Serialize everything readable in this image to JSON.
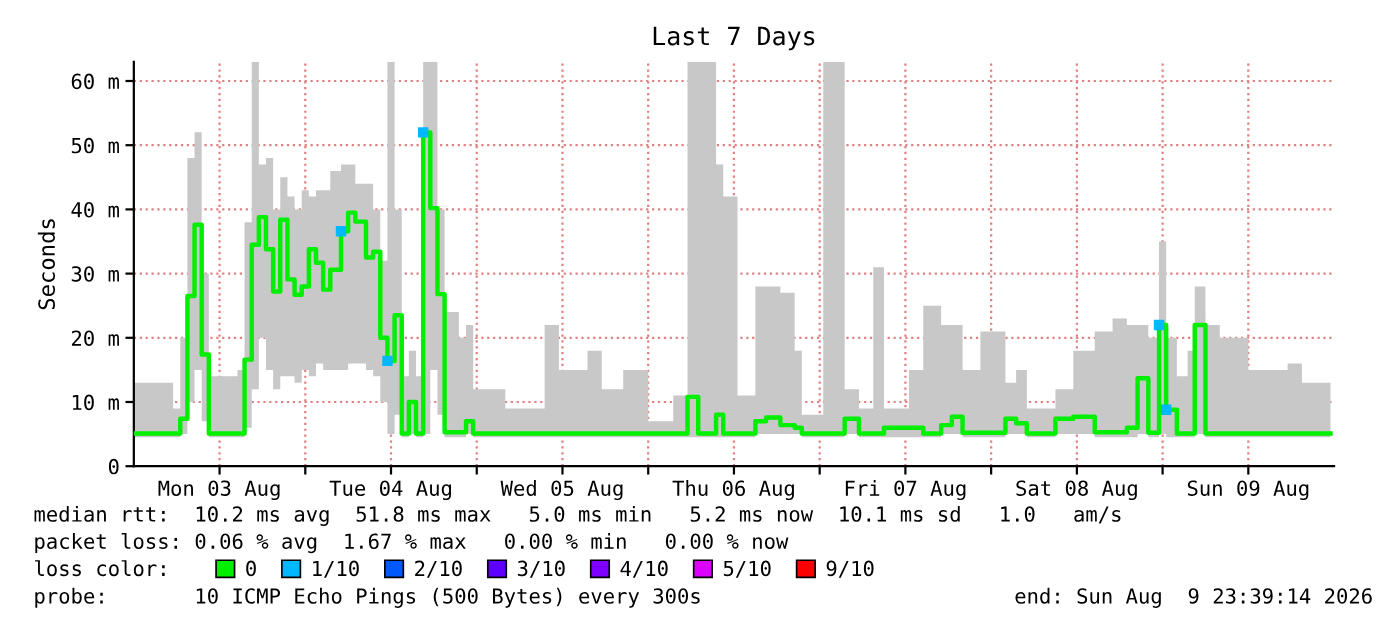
{
  "chart_data": {
    "type": "step",
    "title": "Last 7 Days",
    "ylabel": "Seconds",
    "legend_title": "loss color:",
    "x": [
      "2026-08-03T00:00",
      "2026-08-03T05:30",
      "2026-08-03T06:30",
      "2026-08-03T07:30",
      "2026-08-03T08:30",
      "2026-08-03T09:30",
      "2026-08-03T10:30",
      "2026-08-03T14:30",
      "2026-08-03T15:30",
      "2026-08-03T16:30",
      "2026-08-03T17:30",
      "2026-08-03T18:30",
      "2026-08-03T19:30",
      "2026-08-03T20:30",
      "2026-08-03T21:30",
      "2026-08-03T22:30",
      "2026-08-03T23:30",
      "2026-08-04T00:30",
      "2026-08-04T01:30",
      "2026-08-04T02:30",
      "2026-08-04T03:30",
      "2026-08-04T05:00",
      "2026-08-04T06:00",
      "2026-08-04T07:00",
      "2026-08-04T08:30",
      "2026-08-04T09:30",
      "2026-08-04T10:30",
      "2026-08-04T11:30",
      "2026-08-04T12:30",
      "2026-08-04T13:30",
      "2026-08-04T14:30",
      "2026-08-04T15:30",
      "2026-08-04T16:30",
      "2026-08-04T17:30",
      "2026-08-04T18:30",
      "2026-08-04T19:30",
      "2026-08-04T21:30",
      "2026-08-04T22:30",
      "2026-08-04T23:30",
      "2026-08-05T04:00",
      "2026-08-05T09:30",
      "2026-08-05T11:30",
      "2026-08-05T15:30",
      "2026-08-05T17:30",
      "2026-08-05T20:30",
      "2026-08-06T00:00",
      "2026-08-06T03:30",
      "2026-08-06T05:30",
      "2026-08-06T07:00",
      "2026-08-06T09:30",
      "2026-08-06T10:30",
      "2026-08-06T12:30",
      "2026-08-06T15:00",
      "2026-08-06T16:30",
      "2026-08-06T18:30",
      "2026-08-06T20:30",
      "2026-08-06T21:30",
      "2026-08-07T00:30",
      "2026-08-07T03:30",
      "2026-08-07T05:30",
      "2026-08-07T07:30",
      "2026-08-07T09:00",
      "2026-08-07T12:30",
      "2026-08-07T14:30",
      "2026-08-07T17:00",
      "2026-08-07T18:30",
      "2026-08-07T20:00",
      "2026-08-07T22:30",
      "2026-08-08T02:00",
      "2026-08-08T03:30",
      "2026-08-08T05:00",
      "2026-08-08T09:00",
      "2026-08-08T11:30",
      "2026-08-08T14:30",
      "2026-08-08T17:00",
      "2026-08-08T19:00",
      "2026-08-08T20:30",
      "2026-08-08T22:00",
      "2026-08-08T23:30",
      "2026-08-09T00:30",
      "2026-08-09T02:00",
      "2026-08-09T03:30",
      "2026-08-09T04:30",
      "2026-08-09T06:00",
      "2026-08-09T08:00",
      "2026-08-09T12:00",
      "2026-08-09T17:30",
      "2026-08-09T19:30",
      "2026-08-09T23:30"
    ],
    "series": [
      {
        "name": "0",
        "color": "#00ee00",
        "values": [
          5.1,
          5.1,
          7.4,
          26.5,
          37.6,
          17.4,
          5.1,
          5.1,
          16.6,
          34.5,
          38.8,
          33.8,
          27.2,
          38.4,
          29.1,
          26.7,
          28,
          33.8,
          31.7,
          27.5,
          30.6,
          36.6,
          39.5,
          38.1,
          32.5,
          33.4,
          20,
          16.4,
          23.5,
          5.1,
          10,
          5.1,
          52,
          40.2,
          26.8,
          5.3,
          5.3,
          7,
          5.1,
          5.1,
          5.1,
          5.1,
          5.1,
          5.1,
          5.1,
          5.1,
          5.1,
          10.8,
          5.1,
          8,
          5.1,
          5.1,
          7,
          7.6,
          6.4,
          6,
          5.1,
          5.1,
          7.4,
          5.1,
          5.1,
          6,
          6,
          5.1,
          6.4,
          7.7,
          5.2,
          5.2,
          7.4,
          6.7,
          5.1,
          7.4,
          7.7,
          5.3,
          5.3,
          6,
          13.7,
          5.2,
          22,
          8.8,
          5.1,
          5.1,
          22,
          5.1,
          5.1,
          5.1,
          5.1,
          5.1,
          5.1
        ],
        "lower": [
          4.5,
          4.5,
          5,
          10,
          15,
          7,
          4.5,
          4.5,
          6,
          12,
          20,
          15,
          12,
          14,
          14,
          13,
          15,
          14,
          16,
          15,
          15,
          15,
          16,
          16,
          15,
          14,
          10,
          5,
          8,
          4.5,
          5,
          4.5,
          5,
          15,
          8,
          4.5,
          4.5,
          5,
          4.5,
          4.5,
          4.5,
          4.5,
          4.5,
          4.5,
          4.5,
          4.5,
          4.5,
          4.5,
          4.5,
          4.5,
          4.5,
          4.5,
          5,
          5,
          5,
          5,
          4.5,
          4.5,
          5,
          4.5,
          4.5,
          4.5,
          4.5,
          4.5,
          5,
          5,
          4.5,
          4.5,
          5,
          5,
          4.5,
          5,
          5,
          4.5,
          4.5,
          4.5,
          5,
          4.5,
          5,
          4.5,
          4.5,
          4.5,
          5,
          4.5,
          4.5,
          4.5,
          4.5,
          4.5,
          4.5
        ],
        "upper": [
          13,
          9,
          20,
          48,
          52,
          30,
          14,
          15,
          38,
          63,
          47,
          48,
          40,
          45,
          42,
          40,
          43,
          42,
          43,
          43,
          46,
          47,
          47,
          44,
          44,
          40,
          32,
          63,
          40,
          14,
          18,
          14,
          63,
          63,
          40,
          24,
          20,
          22,
          12,
          9,
          22,
          15,
          18,
          12,
          15,
          7,
          11,
          63,
          63,
          47,
          42,
          11,
          28,
          28,
          27,
          18,
          8,
          63,
          12,
          9,
          31,
          9,
          15,
          25,
          22,
          22,
          15,
          21,
          13,
          15,
          9,
          12,
          18,
          21,
          23,
          22,
          22,
          20,
          35,
          20,
          14,
          18,
          28,
          22,
          20,
          15,
          16,
          13,
          14
        ]
      },
      {
        "name": "1/10",
        "type": "scatter",
        "color": "#00b8ff",
        "x": [
          "2026-08-04T05:00",
          "2026-08-04T11:30",
          "2026-08-04T16:30",
          "2026-08-08T23:30",
          "2026-08-09T00:30"
        ],
        "values": [
          36.6,
          16.4,
          52,
          22,
          8.8
        ]
      },
      {
        "name": "2/10",
        "type": "scatter",
        "color": "#0059ff",
        "values": [
          null,
          null,
          null,
          null,
          null,
          null,
          null,
          null,
          null,
          null,
          null,
          null,
          null,
          null,
          null,
          null,
          null,
          null,
          null,
          null,
          null,
          null,
          null,
          null,
          null,
          null,
          null,
          null,
          null,
          null,
          null,
          null,
          null,
          null,
          null,
          null,
          null,
          null,
          null,
          null,
          null,
          null,
          null,
          null,
          null,
          null,
          null,
          null,
          null,
          null,
          null,
          null,
          null,
          null,
          null,
          null,
          null,
          null,
          null,
          null,
          null,
          null,
          null,
          null,
          null,
          null,
          null,
          null,
          null,
          null,
          null,
          null,
          null,
          null,
          null,
          null,
          null,
          null,
          null,
          null,
          null,
          null,
          null,
          null,
          null,
          null,
          null,
          null,
          null
        ]
      },
      {
        "name": "3/10",
        "type": "scatter",
        "color": "#5e00ff",
        "values": [
          null,
          null,
          null,
          null,
          null,
          null,
          null,
          null,
          null,
          null,
          null,
          null,
          null,
          null,
          null,
          null,
          null,
          null,
          null,
          null,
          null,
          null,
          null,
          null,
          null,
          null,
          null,
          null,
          null,
          null,
          null,
          null,
          null,
          null,
          null,
          null,
          null,
          null,
          null,
          null,
          null,
          null,
          null,
          null,
          null,
          null,
          null,
          null,
          null,
          null,
          null,
          null,
          null,
          null,
          null,
          null,
          null,
          null,
          null,
          null,
          null,
          null,
          null,
          null,
          null,
          null,
          null,
          null,
          null,
          null,
          null,
          null,
          null,
          null,
          null,
          null,
          null,
          null,
          null,
          null,
          null,
          null,
          null,
          null,
          null,
          null,
          null,
          null,
          null
        ]
      },
      {
        "name": "4/10",
        "type": "scatter",
        "color": "#7e00ff",
        "values": [
          null,
          null,
          null,
          null,
          null,
          null,
          null,
          null,
          null,
          null,
          null,
          null,
          null,
          null,
          null,
          null,
          null,
          null,
          null,
          null,
          null,
          null,
          null,
          null,
          null,
          null,
          null,
          null,
          null,
          null,
          null,
          null,
          null,
          null,
          null,
          null,
          null,
          null,
          null,
          null,
          null,
          null,
          null,
          null,
          null,
          null,
          null,
          null,
          null,
          null,
          null,
          null,
          null,
          null,
          null,
          null,
          null,
          null,
          null,
          null,
          null,
          null,
          null,
          null,
          null,
          null,
          null,
          null,
          null,
          null,
          null,
          null,
          null,
          null,
          null,
          null,
          null,
          null,
          null,
          null,
          null,
          null,
          null,
          null,
          null,
          null,
          null,
          null,
          null
        ]
      },
      {
        "name": "5/10",
        "type": "scatter",
        "color": "#dd00ff",
        "values": [
          null,
          null,
          null,
          null,
          null,
          null,
          null,
          null,
          null,
          null,
          null,
          null,
          null,
          null,
          null,
          null,
          null,
          null,
          null,
          null,
          null,
          null,
          null,
          null,
          null,
          null,
          null,
          null,
          null,
          null,
          null,
          null,
          null,
          null,
          null,
          null,
          null,
          null,
          null,
          null,
          null,
          null,
          null,
          null,
          null,
          null,
          null,
          null,
          null,
          null,
          null,
          null,
          null,
          null,
          null,
          null,
          null,
          null,
          null,
          null,
          null,
          null,
          null,
          null,
          null,
          null,
          null,
          null,
          null,
          null,
          null,
          null,
          null,
          null,
          null,
          null,
          null,
          null,
          null,
          null,
          null,
          null,
          null,
          null,
          null,
          null,
          null,
          null,
          null
        ]
      },
      {
        "name": "9/10",
        "type": "scatter",
        "color": "#ff0000",
        "values": [
          null,
          null,
          null,
          null,
          null,
          null,
          null,
          null,
          null,
          null,
          null,
          null,
          null,
          null,
          null,
          null,
          null,
          null,
          null,
          null,
          null,
          null,
          null,
          null,
          null,
          null,
          null,
          null,
          null,
          null,
          null,
          null,
          null,
          null,
          null,
          null,
          null,
          null,
          null,
          null,
          null,
          null,
          null,
          null,
          null,
          null,
          null,
          null,
          null,
          null,
          null,
          null,
          null,
          null,
          null,
          null,
          null,
          null,
          null,
          null,
          null,
          null,
          null,
          null,
          null,
          null,
          null,
          null,
          null,
          null,
          null,
          null,
          null,
          null,
          null,
          null,
          null,
          null,
          null,
          null,
          null,
          null,
          null,
          null,
          null,
          null,
          null,
          null,
          null
        ]
      }
    ],
    "xlim": [
      "2026-08-03T00:00",
      "2026-08-10T00:00"
    ],
    "xticks": [
      {
        "value": "2026-08-03T12:00",
        "label": "Mon 03 Aug"
      },
      {
        "value": "2026-08-04T00:00",
        "label": null
      },
      {
        "value": "2026-08-04T12:00",
        "label": "Tue 04 Aug"
      },
      {
        "value": "2026-08-05T00:00",
        "label": null
      },
      {
        "value": "2026-08-05T12:00",
        "label": "Wed 05 Aug"
      },
      {
        "value": "2026-08-06T00:00",
        "label": null
      },
      {
        "value": "2026-08-06T12:00",
        "label": "Thu 06 Aug"
      },
      {
        "value": "2026-08-07T00:00",
        "label": null
      },
      {
        "value": "2026-08-07T12:00",
        "label": "Fri 07 Aug"
      },
      {
        "value": "2026-08-08T00:00",
        "label": null
      },
      {
        "value": "2026-08-08T12:00",
        "label": "Sat 08 Aug"
      },
      {
        "value": "2026-08-09T00:00",
        "label": null
      },
      {
        "value": "2026-08-09T12:00",
        "label": "Sun 09 Aug"
      }
    ],
    "ylim": [
      0,
      63
    ],
    "yticks": [
      0,
      {
        "value": 10,
        "label": "10 m"
      },
      {
        "value": 20,
        "label": "20 m"
      },
      {
        "value": 30,
        "label": "30 m"
      },
      {
        "value": 40,
        "label": "40 m"
      },
      {
        "value": 50,
        "label": "50 m"
      },
      {
        "value": 60,
        "label": "60 m"
      }
    ],
    "grid": true,
    "legend": "bottom",
    "annotations": [
      "median rtt:  10.2 ms avg  51.8 ms max   5.0 ms min   5.2 ms now  10.1 ms sd   1.0   am/s",
      "packet loss: 0.06 % avg  1.67 % max   0.00 % min   0.00 % now",
      "probe:       10 ICMP Echo Pings (500 Bytes) every 300s",
      "end: Sun Aug  9 23:39:14 2026"
    ]
  }
}
